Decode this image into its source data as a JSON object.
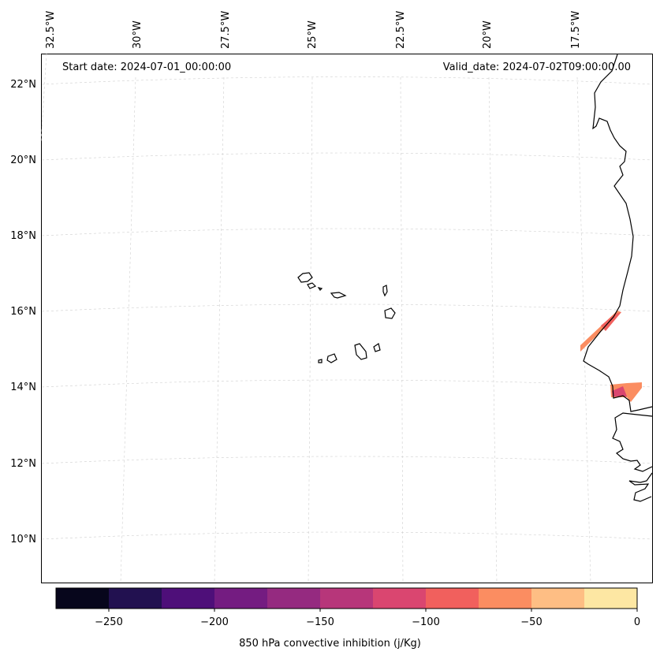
{
  "map": {
    "projection_note": "",
    "start_date": "Start date: 2024-07-01_00:00:00",
    "valid_date": "Valid_date: 2024-07-02T09:00:00.00",
    "lon_labels": [
      "32.5°W",
      "30°W",
      "27.5°W",
      "25°W",
      "22.5°W",
      "20°W",
      "17.5°W"
    ],
    "lat_labels": [
      "22°N",
      "20°N",
      "18°N",
      "16°N",
      "14°N",
      "12°N",
      "10°N"
    ],
    "gridlines": true
  },
  "colorbar": {
    "title": "850 hPa convective inhibition (j/Kg)",
    "tick_labels": [
      "−250",
      "−200",
      "−150",
      "−100",
      "−50",
      "0"
    ],
    "bins": [
      -275,
      -250,
      -225,
      -200,
      -175,
      -150,
      -125,
      -100,
      -75,
      -50,
      -25,
      0
    ],
    "colors": [
      "#07061c",
      "#221150",
      "#4e0f79",
      "#741c81",
      "#952a80",
      "#b7367a",
      "#da4670",
      "#f1605d",
      "#fb8d61",
      "#febe84",
      "#fde7a3"
    ]
  },
  "field_patches": [
    {
      "name": "senegal-north-patch",
      "value": -75,
      "color": "#fb8d61"
    },
    {
      "name": "senegal-north-core",
      "value": -100,
      "color": "#f1605d"
    },
    {
      "name": "gambia-patch",
      "value": -75,
      "color": "#fb8d61"
    },
    {
      "name": "gambia-core",
      "value": -125,
      "color": "#da4670"
    }
  ]
}
